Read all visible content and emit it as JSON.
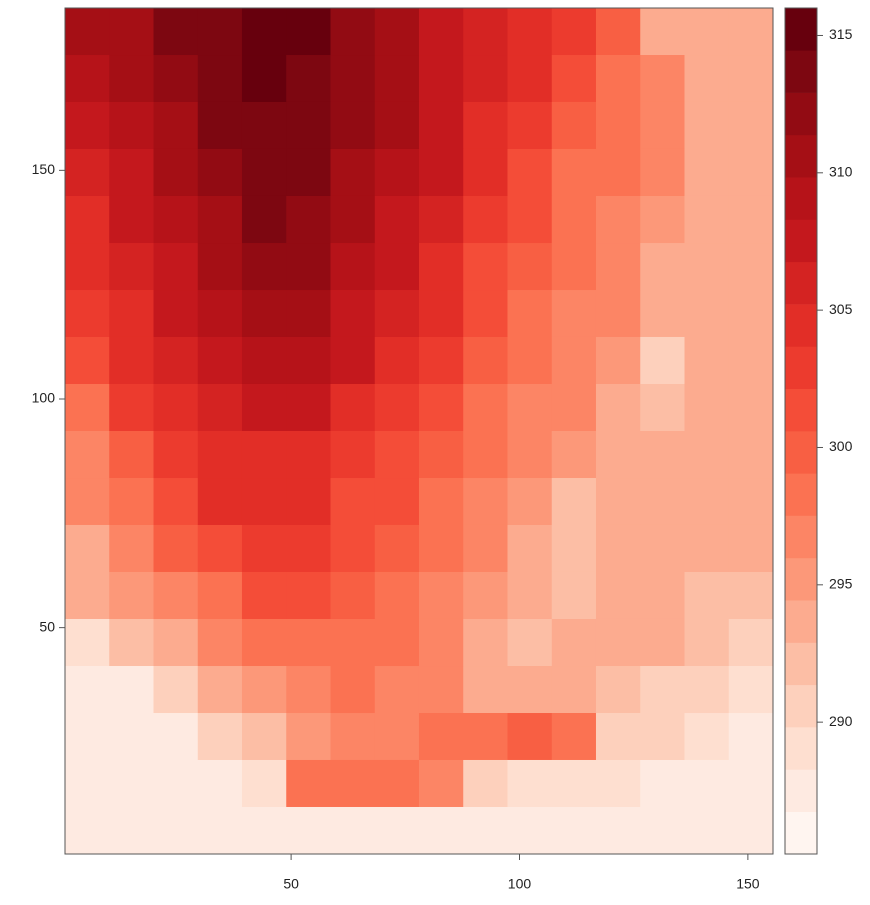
{
  "chart_data": {
    "type": "heatmap",
    "x": [
      5.34,
      15.03,
      24.72,
      34.41,
      44.09,
      53.78,
      63.47,
      73.16,
      82.84,
      92.53,
      102.22,
      111.91,
      121.59,
      131.28,
      140.97,
      150.66
    ],
    "y": [
      180.36,
      170.08,
      159.81,
      149.53,
      139.25,
      128.97,
      118.69,
      108.42,
      98.14,
      87.86,
      77.58,
      67.31,
      57.03,
      46.75,
      36.47,
      26.19,
      15.92,
      5.64
    ],
    "z": [
      [
        310,
        311,
        313,
        314,
        315,
        315,
        312,
        310,
        308,
        306,
        305,
        303,
        300,
        294,
        293,
        293
      ],
      [
        309,
        310,
        312,
        314,
        315,
        314,
        312,
        310,
        308,
        306,
        304,
        302,
        299,
        296,
        293,
        293
      ],
      [
        307,
        309,
        311,
        313,
        314,
        314,
        312,
        310,
        308,
        305,
        303,
        300,
        298,
        296,
        293,
        293
      ],
      [
        306,
        308,
        310,
        312,
        313,
        313,
        311,
        309,
        307,
        304,
        302,
        299,
        298,
        296,
        294,
        293
      ],
      [
        305,
        307,
        309,
        311,
        313,
        312,
        310,
        308,
        306,
        303,
        301,
        299,
        297,
        295,
        294,
        293
      ],
      [
        304,
        306,
        308,
        310,
        312,
        312,
        309,
        307,
        305,
        302,
        300,
        298,
        296,
        294,
        293,
        293
      ],
      [
        303,
        305,
        307,
        309,
        311,
        311,
        308,
        306,
        304,
        301,
        299,
        297,
        296,
        293,
        293,
        293
      ],
      [
        302,
        304,
        306,
        308,
        309,
        309,
        307,
        305,
        303,
        300,
        298,
        297,
        295,
        291,
        294,
        293
      ],
      [
        298,
        303,
        305,
        306,
        307,
        307,
        305,
        303,
        301,
        299,
        297,
        296,
        294,
        292,
        294,
        293
      ],
      [
        297,
        300,
        303,
        305,
        305,
        305,
        303,
        302,
        300,
        298,
        296,
        295,
        293,
        293,
        293,
        293
      ],
      [
        296,
        299,
        302,
        304,
        304,
        304,
        302,
        301,
        299,
        297,
        295,
        292,
        294,
        293,
        293,
        293
      ],
      [
        294,
        297,
        300,
        302,
        303,
        303,
        301,
        300,
        298,
        296,
        294,
        292,
        293,
        294,
        293,
        293
      ],
      [
        293,
        295,
        297,
        299,
        301,
        301,
        300,
        299,
        297,
        295,
        293,
        292,
        294,
        294,
        292,
        292
      ],
      [
        289,
        292,
        294,
        296,
        298,
        299,
        299,
        298,
        296,
        294,
        292,
        293,
        294,
        293,
        292,
        291
      ],
      [
        287,
        288,
        291,
        293,
        295,
        297,
        298,
        297,
        296,
        294,
        293,
        294,
        292,
        291,
        290,
        289
      ],
      [
        287,
        287,
        288,
        290,
        292,
        295,
        297,
        297,
        298,
        299,
        300,
        298,
        291,
        290,
        289,
        288
      ],
      [
        287,
        287,
        287,
        288,
        289,
        298,
        298,
        299,
        297,
        290,
        289,
        289,
        289,
        288,
        288,
        287
      ],
      [
        287,
        287,
        287,
        287,
        287,
        288,
        288,
        288,
        288,
        287,
        287,
        287,
        287,
        287,
        287,
        287
      ]
    ],
    "xlim": [
      0.5,
      155.5
    ],
    "ylim": [
      0.5,
      185.5
    ],
    "xticks": [
      50,
      100,
      150
    ],
    "yticks": [
      50,
      100,
      150
    ],
    "colorbar": {
      "breaks": [
        285.2,
        286.74,
        288.28,
        289.82,
        291.36,
        292.9,
        294.44,
        295.98,
        297.52,
        299.06,
        300.6,
        302.14,
        303.68,
        305.22,
        306.76,
        308.3,
        309.84,
        311.38,
        312.92,
        314.46,
        316.0
      ],
      "colors": [
        "#fff5f0",
        "#feeae1",
        "#fedfd0",
        "#fdd0bc",
        "#fcbea5",
        "#fcab8f",
        "#fc9879",
        "#fc8565",
        "#fb7252",
        "#f85f43",
        "#f44d38",
        "#ec3b2e",
        "#e22e27",
        "#d42322",
        "#c4181d",
        "#b61319",
        "#a50f15",
        "#920b13",
        "#7d0711",
        "#67000d"
      ],
      "ticks": [
        290,
        295,
        300,
        305,
        310,
        315
      ]
    }
  }
}
